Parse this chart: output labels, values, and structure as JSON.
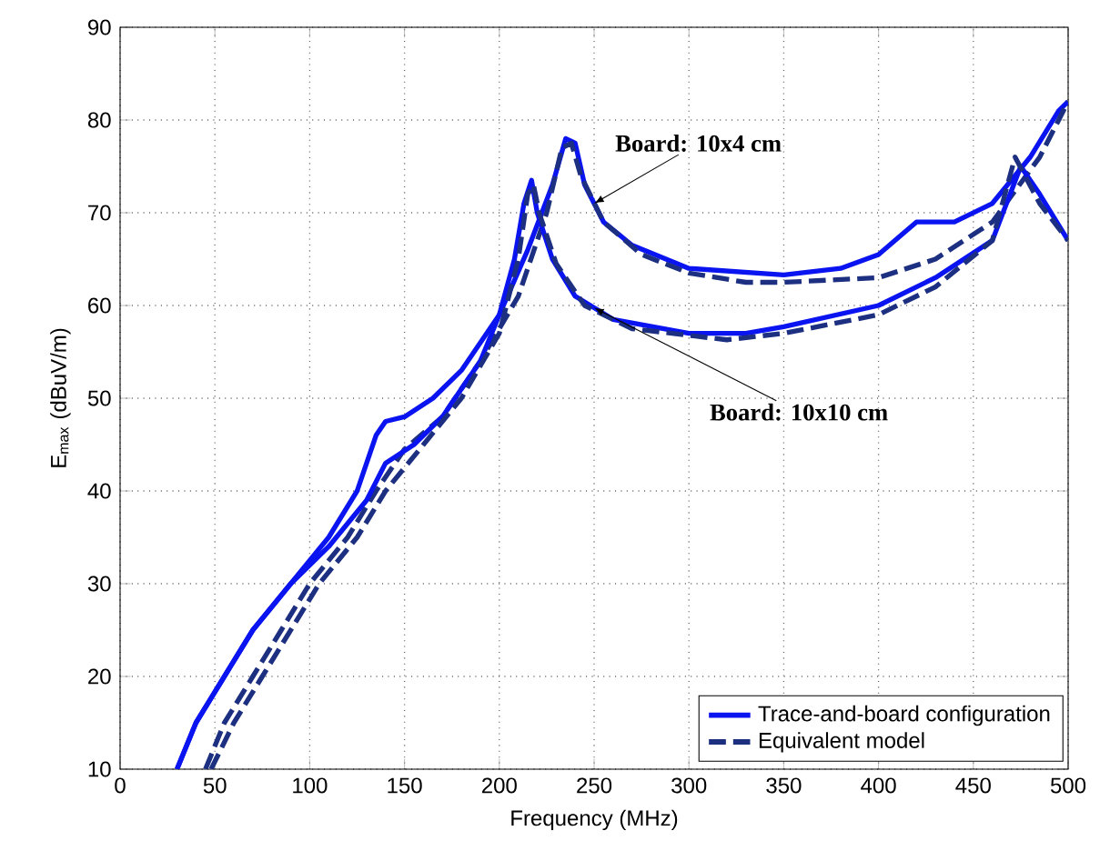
{
  "chart_data": {
    "type": "line",
    "xlabel": "Frequency (MHz)",
    "ylabel": "E$_{max}$ (dBuV/m)",
    "xlim": [
      0,
      500
    ],
    "xticks": [
      0,
      50,
      100,
      150,
      200,
      250,
      300,
      350,
      400,
      450,
      500
    ],
    "ylim": [
      10,
      90
    ],
    "yticks": [
      10,
      20,
      30,
      40,
      50,
      60,
      70,
      80,
      90
    ],
    "grid": true,
    "legend": "bottom right",
    "marker": "none",
    "annotations": [
      {
        "text": "Board: 10x4 cm",
        "x": 250,
        "y": 71
      },
      {
        "text": "Board: 10x10 cm",
        "x": 250,
        "y": 59.75
      }
    ],
    "series": [
      {
        "name": "Trace-and-board configuration",
        "color": "#0a14f0",
        "line_style": "solid",
        "x": [
          30,
          40,
          55,
          70,
          90,
          110,
          125,
          135,
          140,
          150,
          165,
          180,
          200,
          215,
          228,
          235,
          240,
          245,
          255,
          270,
          300,
          350,
          380,
          400,
          420,
          440,
          460,
          480,
          495,
          500
        ],
        "values": [
          10,
          15,
          20,
          25,
          30,
          35,
          40,
          46,
          47.5,
          48,
          50,
          53,
          59,
          66,
          73,
          78,
          77.5,
          73,
          69,
          66.5,
          64,
          63.3,
          64,
          65.5,
          69,
          69,
          71,
          76,
          81,
          82
        ]
      },
      {
        "name": "Equivalent model",
        "color": "#1c2f80",
        "line_style": "dashed",
        "x": [
          45,
          55,
          70,
          85,
          100,
          120,
          135,
          150,
          170,
          190,
          210,
          225,
          233,
          238,
          243,
          255,
          275,
          300,
          330,
          350,
          400,
          430,
          460,
          485,
          500
        ],
        "values": [
          10,
          15,
          20,
          25,
          30,
          35,
          40,
          44.5,
          48,
          54,
          61,
          70,
          77,
          77.5,
          74,
          69,
          65.5,
          63.5,
          62.5,
          62.5,
          63,
          65,
          69,
          76,
          82
        ]
      },
      {
        "color": "#0a14f0",
        "line_style": "solid",
        "x": [
          30,
          40,
          55,
          70,
          90,
          110,
          130,
          140,
          155,
          170,
          190,
          200,
          208,
          213,
          217,
          220,
          228,
          240,
          260,
          300,
          330,
          350,
          400,
          430,
          460,
          475,
          485,
          500
        ],
        "values": [
          10,
          15,
          20,
          25,
          30,
          34,
          39,
          43,
          45,
          48,
          54,
          59,
          65,
          71,
          73.5,
          70,
          65,
          61,
          58.5,
          57,
          57,
          57.7,
          60,
          63,
          67,
          75,
          72,
          67
        ]
      },
      {
        "color": "#1c2f80",
        "line_style": "dashed",
        "x": [
          48,
          60,
          75,
          90,
          105,
          125,
          140,
          160,
          180,
          200,
          210,
          215,
          218,
          221,
          230,
          245,
          270,
          320,
          350,
          400,
          430,
          460,
          472,
          485,
          500
        ],
        "values": [
          10,
          15,
          20,
          25,
          30,
          35,
          40,
          45,
          50,
          57,
          65,
          72,
          73,
          70,
          64.5,
          60,
          57.5,
          56.3,
          57,
          59,
          62,
          67,
          76,
          71,
          67
        ]
      }
    ]
  }
}
